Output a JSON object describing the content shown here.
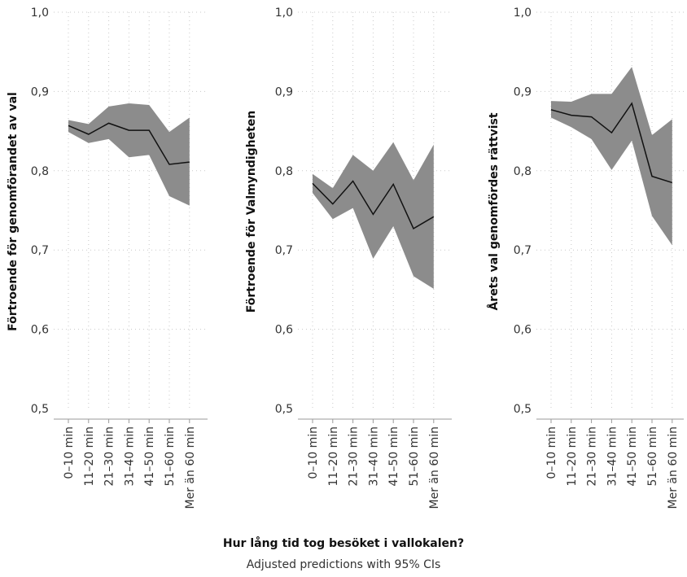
{
  "x_title": "Hur lång tid tog besöket i vallokalen?",
  "subtitle": "Adjusted predictions with 95% CIs",
  "chart_data": [
    {
      "type": "line",
      "ylabel": "Förtroende för genomförandet av val",
      "categories": [
        "0–10 min",
        "11–20 min",
        "21–30 min",
        "31–40 min",
        "41–50 min",
        "51–60 min",
        "Mer än 60 min"
      ],
      "yticks": [
        "0,5",
        "0,6",
        "0,7",
        "0,8",
        "0,9",
        "1,0"
      ],
      "ylim": [
        0.5,
        1.0
      ],
      "values": [
        0.857,
        0.846,
        0.86,
        0.851,
        0.851,
        0.808,
        0.811
      ],
      "ci_upper": [
        0.864,
        0.859,
        0.881,
        0.885,
        0.883,
        0.849,
        0.867
      ],
      "ci_lower": [
        0.849,
        0.835,
        0.84,
        0.817,
        0.82,
        0.768,
        0.756
      ],
      "band_color": "#8c8c8c",
      "line_color": "#111111"
    },
    {
      "type": "line",
      "ylabel": "Förtroende för Valmyndigheten",
      "categories": [
        "0–10 min",
        "11–20 min",
        "21–30 min",
        "31–40 min",
        "41–50 min",
        "51–60 min",
        "Mer än 60 min"
      ],
      "yticks": [
        "0,5",
        "0,6",
        "0,7",
        "0,8",
        "0,9",
        "1,0"
      ],
      "ylim": [
        0.5,
        1.0
      ],
      "values": [
        0.784,
        0.758,
        0.787,
        0.745,
        0.783,
        0.727,
        0.742
      ],
      "ci_upper": [
        0.796,
        0.778,
        0.82,
        0.8,
        0.836,
        0.788,
        0.833
      ],
      "ci_lower": [
        0.772,
        0.739,
        0.753,
        0.689,
        0.73,
        0.667,
        0.651
      ],
      "band_color": "#8c8c8c",
      "line_color": "#111111"
    },
    {
      "type": "line",
      "ylabel": "Årets val genomfördes rättvist",
      "categories": [
        "0–10 min",
        "11–20 min",
        "21–30 min",
        "31–40 min",
        "41–50 min",
        "51–60 min",
        "Mer än 60 min"
      ],
      "yticks": [
        "0,5",
        "0,6",
        "0,7",
        "0,8",
        "0,9",
        "1,0"
      ],
      "ylim": [
        0.5,
        1.0
      ],
      "values": [
        0.877,
        0.87,
        0.868,
        0.848,
        0.885,
        0.793,
        0.785
      ],
      "ci_upper": [
        0.888,
        0.887,
        0.897,
        0.897,
        0.931,
        0.845,
        0.865
      ],
      "ci_lower": [
        0.867,
        0.855,
        0.84,
        0.801,
        0.838,
        0.743,
        0.706
      ],
      "band_color": "#8c8c8c",
      "line_color": "#111111"
    }
  ]
}
